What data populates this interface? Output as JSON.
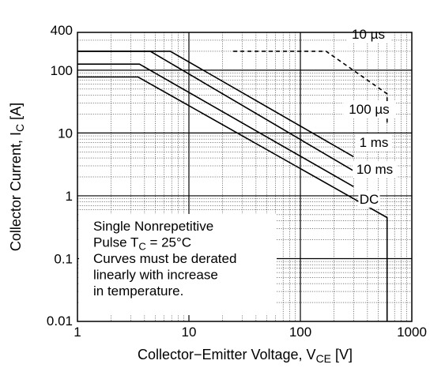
{
  "chart_data": {
    "type": "line",
    "title": "",
    "xlabel": "Collector−Emitter Voltage, VCE [V]",
    "xlabel_main": "Collector−Emitter Voltage, V",
    "xlabel_sub": "CE",
    "xlabel_unit": " [V]",
    "ylabel": "Collector Current, IC [A]",
    "ylabel_main": "Collector Current, I",
    "ylabel_sub": "C",
    "ylabel_unit": " [A]",
    "xscale": "log",
    "yscale": "log",
    "xlim": [
      1,
      1000
    ],
    "ylim": [
      0.01,
      400
    ],
    "grid": true,
    "x_ticks": [
      {
        "value": 1,
        "label": "1"
      },
      {
        "value": 10,
        "label": "10"
      },
      {
        "value": 100,
        "label": "100"
      },
      {
        "value": 1000,
        "label": "1000"
      }
    ],
    "y_ticks": [
      {
        "value": 0.01,
        "label": "0.01"
      },
      {
        "value": 0.1,
        "label": "0.1"
      },
      {
        "value": 1,
        "label": "1"
      },
      {
        "value": 10,
        "label": "10"
      },
      {
        "value": 100,
        "label": "100"
      },
      {
        "value": 400,
        "label": "400"
      }
    ],
    "series": [
      {
        "name": "10 µs",
        "dashed": true,
        "points": [
          [
            25,
            200
          ],
          [
            170,
            200
          ],
          [
            600,
            42
          ],
          [
            600,
            14
          ]
        ]
      },
      {
        "name": "100 µs",
        "dashed": false,
        "points": [
          [
            1,
            200
          ],
          [
            6.8,
            200
          ],
          [
            300,
            4.2
          ]
        ]
      },
      {
        "name": "1 ms",
        "dashed": false,
        "points": [
          [
            1,
            200
          ],
          [
            4.5,
            200
          ],
          [
            300,
            2.5
          ]
        ]
      },
      {
        "name": "10 ms",
        "dashed": false,
        "points": [
          [
            1,
            125
          ],
          [
            3.6,
            125
          ],
          [
            300,
            1.4
          ]
        ]
      },
      {
        "name": "DC",
        "dashed": false,
        "points": [
          [
            1,
            78
          ],
          [
            3.5,
            78
          ],
          [
            600,
            0.45
          ],
          [
            600,
            0.01
          ]
        ]
      }
    ],
    "annotation": {
      "lines": [
        {
          "main": "Single Nonrepetitive"
        },
        {
          "main": "Pulse T",
          "sub": "C",
          "rest": " = 25°C"
        },
        {
          "main": "Curves must be derated"
        },
        {
          "main": "linearly with increase"
        },
        {
          "main": "in temperature."
        }
      ]
    },
    "curve_labels": [
      {
        "series": "10 µs",
        "text": "10 µs"
      },
      {
        "series": "100 µs",
        "text": "100 µs"
      },
      {
        "series": "1 ms",
        "text": "1 ms"
      },
      {
        "series": "10 ms",
        "text": "10 ms"
      },
      {
        "series": "DC",
        "text": "DC"
      }
    ],
    "colors": {
      "line": "#000000",
      "grid": "#000000",
      "background": "#ffffff"
    }
  }
}
